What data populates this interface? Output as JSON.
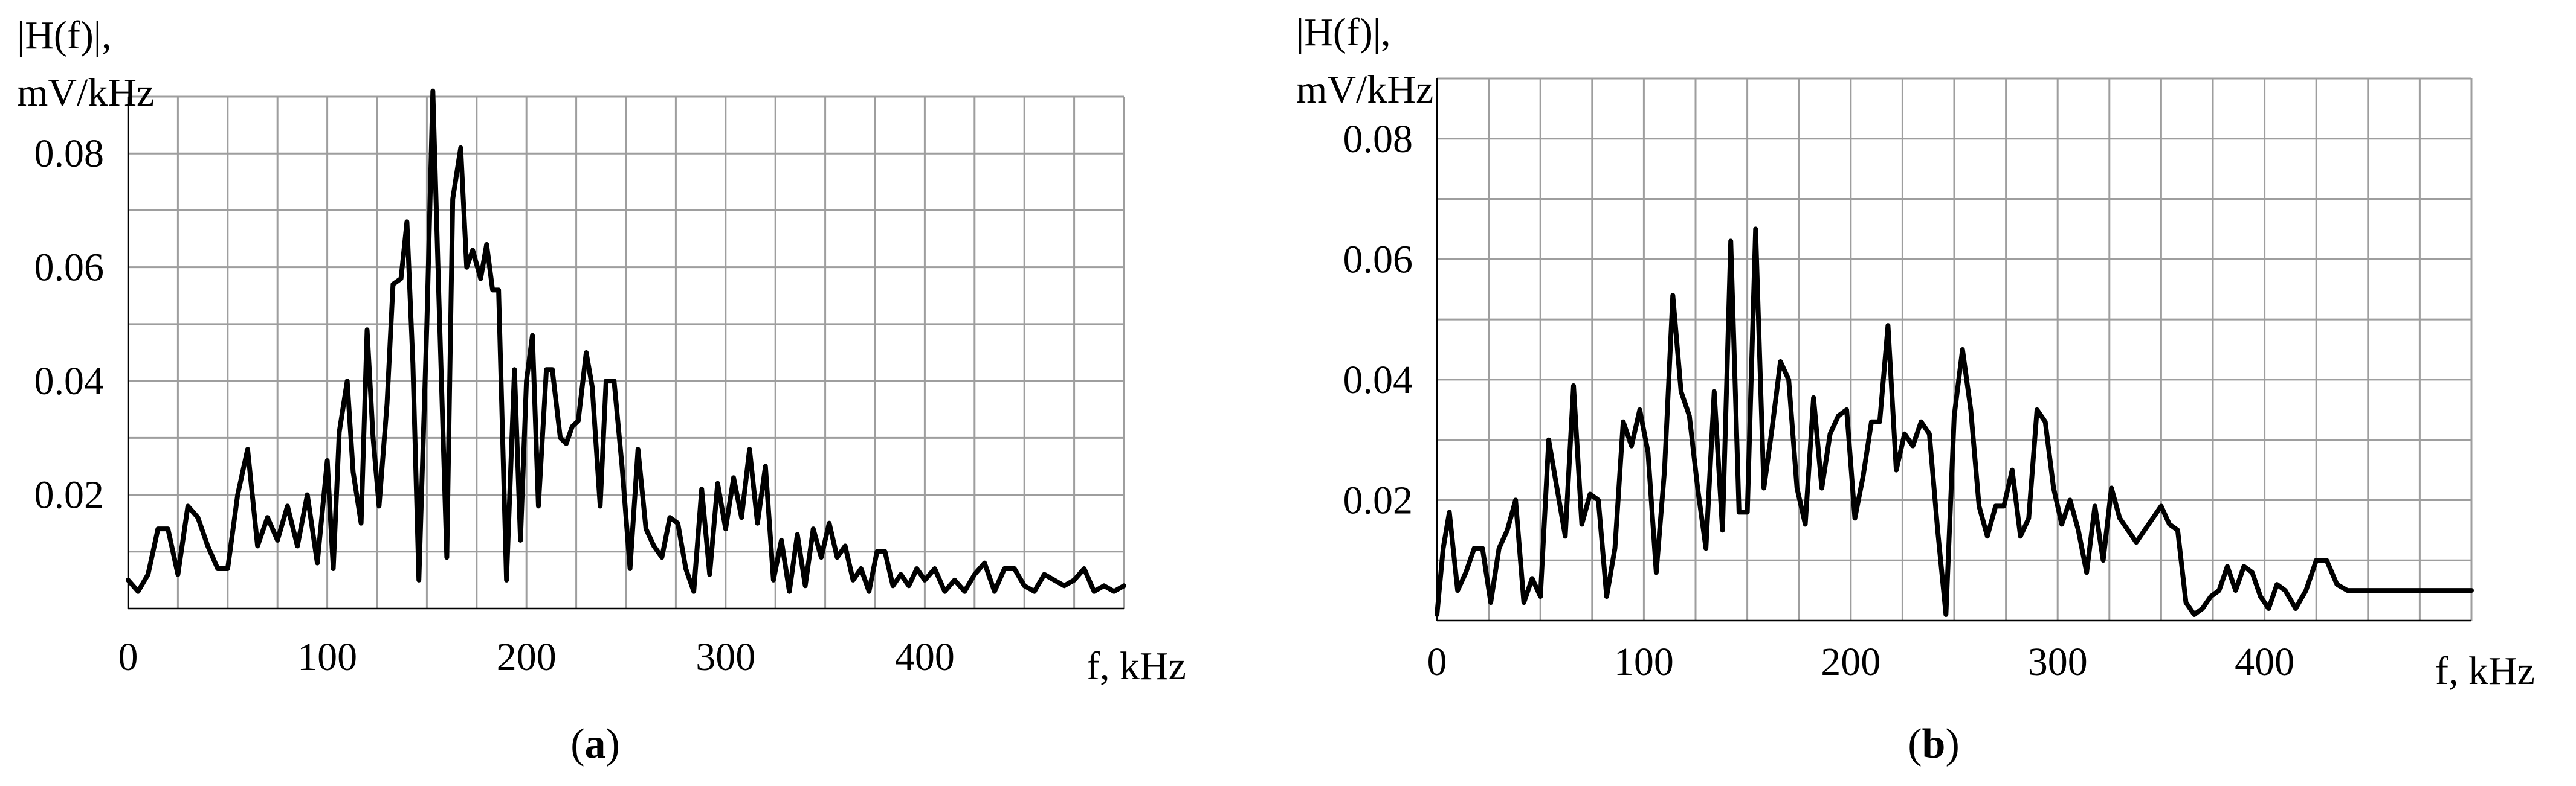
{
  "chart_data": [
    {
      "type": "line",
      "panel_label": "a",
      "ylabel_lines": [
        "|H(f)|,",
        "mV/kHz"
      ],
      "xlabel": "f, kHz",
      "x_ticks": [
        0,
        100,
        200,
        300,
        400
      ],
      "y_ticks": [
        0.02,
        0.04,
        0.06,
        0.08
      ],
      "xlim": [
        0,
        500
      ],
      "ylim": [
        0,
        0.09
      ],
      "grid": true,
      "series": [
        {
          "x": [
            0,
            5,
            10,
            15,
            20,
            25,
            30,
            35,
            40,
            45,
            50,
            55,
            60,
            65,
            70,
            75,
            80,
            85,
            90,
            95,
            100,
            103,
            106,
            110,
            113,
            117,
            120,
            123,
            126,
            130,
            133,
            137,
            140,
            143,
            146,
            150,
            153,
            156,
            160,
            163,
            167,
            170,
            173,
            177,
            180,
            183,
            186,
            190,
            194,
            197,
            200,
            203,
            206,
            210,
            213,
            217,
            220,
            223,
            226,
            230,
            233,
            237,
            240,
            244,
            248,
            252,
            256,
            260,
            264,
            268,
            272,
            276,
            280,
            284,
            288,
            292,
            296,
            300,
            304,
            308,
            312,
            316,
            320,
            324,
            328,
            332,
            336,
            340,
            344,
            348,
            352,
            356,
            360,
            364,
            368,
            372,
            376,
            380,
            384,
            388,
            392,
            396,
            400,
            405,
            410,
            415,
            420,
            425,
            430,
            435,
            440,
            445,
            450,
            455,
            460,
            465,
            470,
            475,
            480,
            485,
            490,
            495,
            500
          ],
          "values": [
            0.005,
            0.003,
            0.006,
            0.014,
            0.014,
            0.006,
            0.018,
            0.016,
            0.011,
            0.007,
            0.007,
            0.02,
            0.028,
            0.011,
            0.016,
            0.012,
            0.018,
            0.011,
            0.02,
            0.008,
            0.026,
            0.007,
            0.031,
            0.04,
            0.024,
            0.015,
            0.049,
            0.03,
            0.018,
            0.036,
            0.057,
            0.058,
            0.068,
            0.043,
            0.005,
            0.05,
            0.091,
            0.055,
            0.009,
            0.072,
            0.081,
            0.06,
            0.063,
            0.058,
            0.064,
            0.056,
            0.056,
            0.005,
            0.042,
            0.012,
            0.04,
            0.048,
            0.018,
            0.042,
            0.042,
            0.03,
            0.029,
            0.032,
            0.033,
            0.045,
            0.039,
            0.018,
            0.04,
            0.04,
            0.025,
            0.007,
            0.028,
            0.014,
            0.011,
            0.009,
            0.016,
            0.015,
            0.007,
            0.003,
            0.021,
            0.006,
            0.022,
            0.014,
            0.023,
            0.016,
            0.028,
            0.015,
            0.025,
            0.005,
            0.012,
            0.003,
            0.013,
            0.004,
            0.014,
            0.009,
            0.015,
            0.009,
            0.011,
            0.005,
            0.007,
            0.003,
            0.01,
            0.01,
            0.004,
            0.006,
            0.004,
            0.007,
            0.005,
            0.007,
            0.003,
            0.005,
            0.003,
            0.006,
            0.008,
            0.003,
            0.007,
            0.007,
            0.004,
            0.003,
            0.006,
            0.005,
            0.004,
            0.005,
            0.007,
            0.003,
            0.004,
            0.003,
            0.004
          ]
        }
      ]
    },
    {
      "type": "line",
      "panel_label": "b",
      "ylabel_lines": [
        "|H(f)|,",
        "mV/kHz"
      ],
      "xlabel": "f, kHz",
      "x_ticks": [
        0,
        100,
        200,
        300,
        400
      ],
      "y_ticks": [
        0.02,
        0.04,
        0.06,
        0.08
      ],
      "xlim": [
        0,
        500
      ],
      "ylim": [
        0,
        0.09
      ],
      "grid": true,
      "series": [
        {
          "x": [
            0,
            3,
            6,
            10,
            14,
            18,
            22,
            26,
            30,
            34,
            38,
            42,
            46,
            50,
            54,
            58,
            62,
            66,
            70,
            74,
            78,
            82,
            86,
            90,
            94,
            98,
            102,
            106,
            110,
            114,
            118,
            122,
            126,
            130,
            134,
            138,
            142,
            146,
            150,
            154,
            158,
            162,
            166,
            170,
            174,
            178,
            182,
            186,
            190,
            194,
            198,
            202,
            206,
            210,
            214,
            218,
            222,
            226,
            230,
            234,
            238,
            242,
            246,
            250,
            254,
            258,
            262,
            266,
            270,
            274,
            278,
            282,
            286,
            290,
            294,
            298,
            302,
            306,
            310,
            314,
            318,
            322,
            326,
            330,
            334,
            338,
            342,
            346,
            350,
            354,
            358,
            362,
            366,
            370,
            374,
            378,
            382,
            386,
            390,
            394,
            398,
            402,
            406,
            410,
            415,
            420,
            425,
            430,
            435,
            440,
            445,
            450,
            455,
            460,
            465,
            470,
            475,
            480,
            485,
            490,
            495,
            500
          ],
          "values": [
            0.001,
            0.012,
            0.018,
            0.005,
            0.008,
            0.012,
            0.012,
            0.003,
            0.012,
            0.015,
            0.02,
            0.003,
            0.007,
            0.004,
            0.03,
            0.022,
            0.014,
            0.039,
            0.016,
            0.021,
            0.02,
            0.004,
            0.012,
            0.033,
            0.029,
            0.035,
            0.028,
            0.008,
            0.025,
            0.054,
            0.038,
            0.034,
            0.022,
            0.012,
            0.038,
            0.015,
            0.063,
            0.018,
            0.018,
            0.065,
            0.022,
            0.032,
            0.043,
            0.04,
            0.022,
            0.016,
            0.037,
            0.022,
            0.031,
            0.034,
            0.035,
            0.017,
            0.024,
            0.033,
            0.033,
            0.049,
            0.025,
            0.031,
            0.029,
            0.033,
            0.031,
            0.015,
            0.001,
            0.034,
            0.045,
            0.035,
            0.019,
            0.014,
            0.019,
            0.019,
            0.025,
            0.014,
            0.017,
            0.035,
            0.033,
            0.022,
            0.016,
            0.02,
            0.015,
            0.008,
            0.019,
            0.01,
            0.022,
            0.017,
            0.015,
            0.013,
            0.015,
            0.017,
            0.019,
            0.016,
            0.015,
            0.003,
            0.001,
            0.002,
            0.004,
            0.005,
            0.009,
            0.005,
            0.009,
            0.008,
            0.004,
            0.002,
            0.006,
            0.005,
            0.002,
            0.005,
            0.01,
            0.01,
            0.006,
            0.005,
            0.005,
            0.005,
            0.005,
            0.005,
            0.005,
            0.005,
            0.005,
            0.005,
            0.005,
            0.005,
            0.005,
            0.005
          ]
        }
      ]
    }
  ]
}
